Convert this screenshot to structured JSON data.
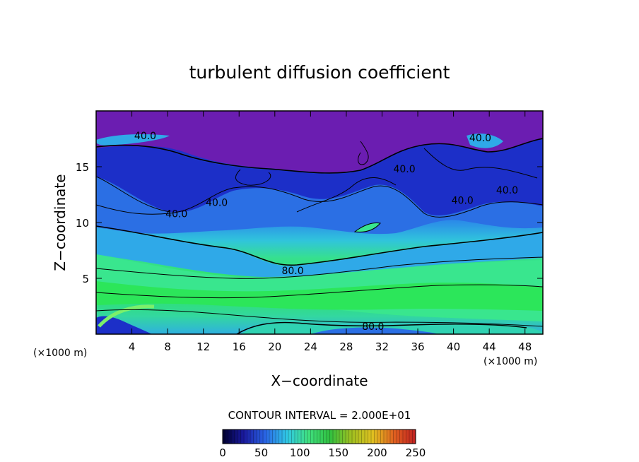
{
  "chart_data": {
    "type": "heatmap",
    "title": "turbulent diffusion coefficient",
    "xlabel": "X−coordinate",
    "ylabel": "Z−coordinate",
    "x_unit": "(×1000 m)",
    "y_unit": "(×1000 m)",
    "xlim": [
      0,
      50
    ],
    "ylim": [
      0,
      20
    ],
    "x_ticks": [
      4,
      8,
      12,
      16,
      20,
      24,
      28,
      32,
      36,
      40,
      44,
      48
    ],
    "y_ticks": [
      5,
      10,
      15
    ],
    "contour_interval_text": "CONTOUR INTERVAL = 2.000E+01",
    "contour_labels": [
      {
        "text": "40.0",
        "x": 5.5,
        "y": 17.8
      },
      {
        "text": "40.0",
        "x": 43.0,
        "y": 17.6
      },
      {
        "text": "40.0",
        "x": 34.5,
        "y": 14.8
      },
      {
        "text": "40.0",
        "x": 46.0,
        "y": 12.9
      },
      {
        "text": "40.0",
        "x": 41.0,
        "y": 12.0
      },
      {
        "text": "40.0",
        "x": 13.5,
        "y": 11.8
      },
      {
        "text": "40.0",
        "x": 9.0,
        "y": 10.8
      },
      {
        "text": "80.0",
        "x": 22.0,
        "y": 5.7
      },
      {
        "text": "80.0",
        "x": 31.0,
        "y": 0.7
      }
    ],
    "colorbar": {
      "range": [
        0,
        250
      ],
      "ticks": [
        0,
        50,
        100,
        150,
        200,
        250
      ],
      "colors": [
        "#000030",
        "#1a1aa0",
        "#2a66e6",
        "#30c8e6",
        "#40e080",
        "#30c040",
        "#a0c020",
        "#e0c020",
        "#e06020",
        "#c02020"
      ]
    },
    "field_colors": {
      "value_0_20": "#6b1db1",
      "value_20_40": "#1c2fc8",
      "value_40_60": "#2b6fe4",
      "value_60_80": "#2fa9e8",
      "value_80_100": "#30d2b2",
      "value_100_120": "#39e68e",
      "value_120_140": "#2ce65a"
    }
  }
}
